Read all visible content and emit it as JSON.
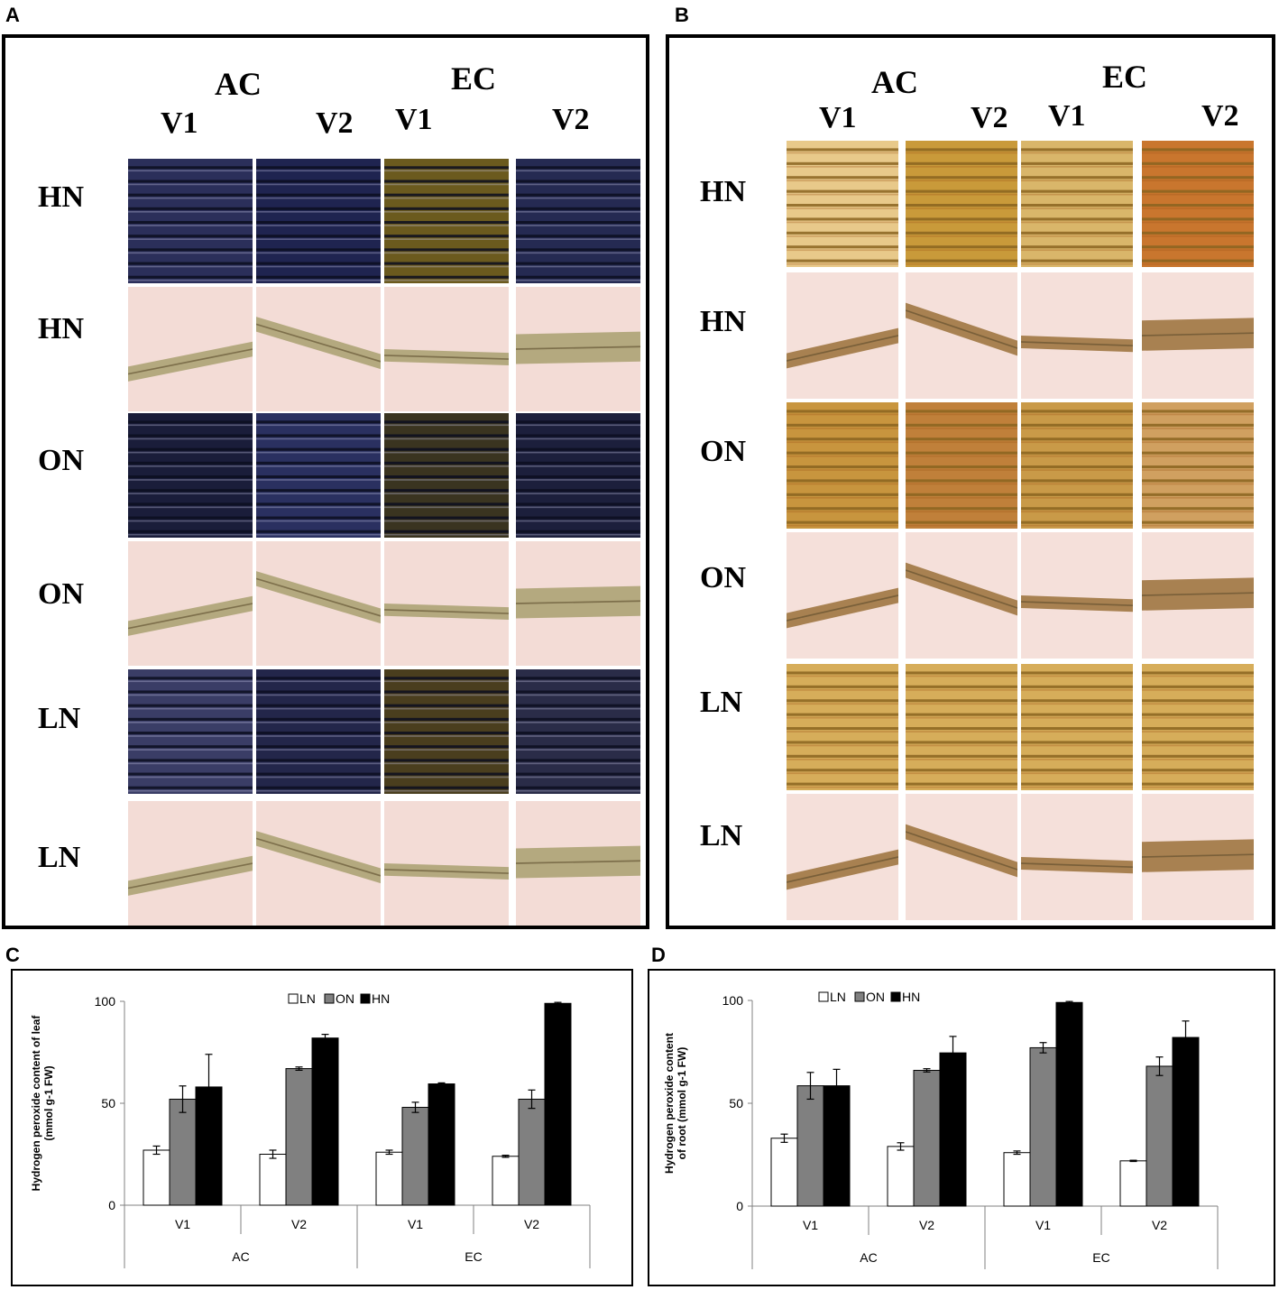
{
  "panels": {
    "A": {
      "letter": "A"
    },
    "B": {
      "letter": "B"
    },
    "C": {
      "letter": "C"
    },
    "D": {
      "letter": "D"
    }
  },
  "micro": {
    "groups": [
      "AC",
      "EC"
    ],
    "varieties": [
      "V1",
      "V2",
      "V1",
      "V2"
    ],
    "rows": [
      "HN",
      "HN",
      "ON",
      "ON",
      "LN",
      "LN"
    ],
    "tissue_rows": [
      "leaf",
      "root",
      "leaf",
      "root",
      "leaf",
      "root"
    ]
  },
  "colors": {
    "panelA_leaf": [
      "#2b2f5a",
      "#1f2450",
      "#6b5a1e",
      "#252a52"
    ],
    "panelA_root_bg": "#f3dcd6",
    "panelB_leaf": "#d8b464",
    "panelB_root_bg": "#f5e0da",
    "bar_LN": "#ffffff",
    "bar_ON": "#808080",
    "bar_HN": "#000000"
  },
  "chart_data": [
    {
      "type": "bar",
      "id": "C",
      "ylabel_line1": "Hydrogen peroxide content of leaf",
      "ylabel_line2": "(mmol g-1 FW)",
      "ylim": [
        0,
        100
      ],
      "yticks": [
        "0",
        "50",
        "100"
      ],
      "ytick_values": [
        0,
        50,
        100
      ],
      "categories": [
        "V1",
        "V2",
        "V1",
        "V2"
      ],
      "groups": [
        "AC",
        "EC"
      ],
      "series": [
        {
          "name": "LN",
          "values": [
            27,
            25,
            26,
            24
          ],
          "errors": [
            2,
            2,
            1,
            0.5
          ]
        },
        {
          "name": "ON",
          "values": [
            52,
            67,
            48,
            52
          ],
          "errors": [
            6.5,
            0.8,
            2.5,
            4.5
          ]
        },
        {
          "name": "HN",
          "values": [
            58,
            82,
            59.5,
            99
          ],
          "errors": [
            16,
            1.8,
            0.5,
            0.5
          ]
        }
      ],
      "legend_position": "top-center"
    },
    {
      "type": "bar",
      "id": "D",
      "ylabel_line1": "Hydrogen peroxide content",
      "ylabel_line2": "of root (mmol g-1 FW)",
      "ylim": [
        0,
        100
      ],
      "yticks": [
        "0",
        "50",
        "100"
      ],
      "ytick_values": [
        0,
        50,
        100
      ],
      "categories": [
        "V1",
        "V2",
        "V1",
        "V2"
      ],
      "groups": [
        "AC",
        "EC"
      ],
      "series": [
        {
          "name": "LN",
          "values": [
            33,
            29,
            26,
            22
          ],
          "errors": [
            2,
            1.8,
            0.8,
            0.3
          ]
        },
        {
          "name": "ON",
          "values": [
            58.5,
            66,
            77,
            68
          ],
          "errors": [
            6.5,
            0.8,
            2.5,
            4.5
          ]
        },
        {
          "name": "HN",
          "values": [
            58.5,
            74.5,
            99,
            82
          ],
          "errors": [
            8,
            8,
            0.5,
            8
          ]
        }
      ],
      "legend_position": "top-left"
    }
  ]
}
